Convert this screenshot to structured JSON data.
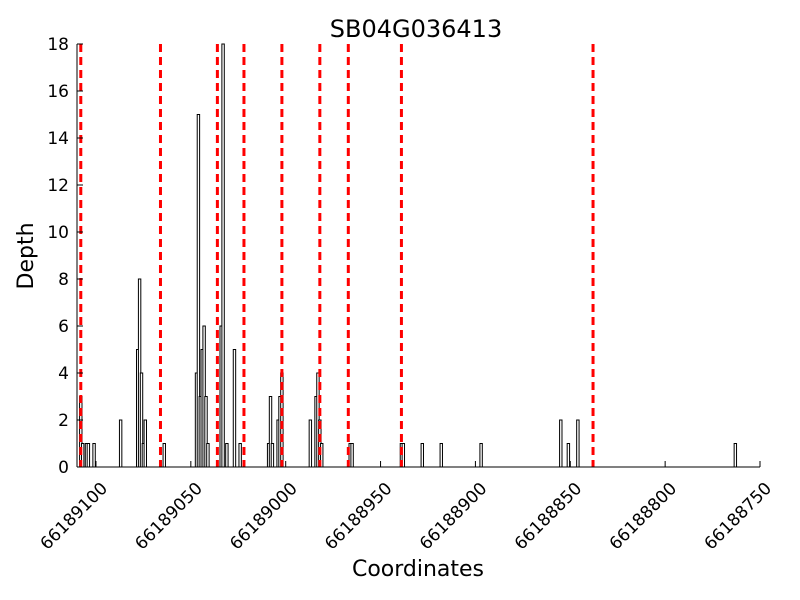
{
  "chart_data": {
    "type": "bar",
    "title": "SB04G036413",
    "xlabel": "Coordinates",
    "ylabel": "Depth",
    "xlim": [
      66189110,
      66188750
    ],
    "ylim": [
      0,
      18
    ],
    "x_reversed": true,
    "yticks": [
      0,
      2,
      4,
      6,
      8,
      10,
      12,
      14,
      16,
      18
    ],
    "xticks": [
      66189100,
      66189050,
      66189000,
      66188950,
      66188900,
      66188850,
      66188800,
      66188750
    ],
    "xtick_labels": [
      "66189100",
      "66189050",
      "66189000",
      "66188950",
      "66188900",
      "66188850",
      "66188800",
      "66188750"
    ],
    "grid": false,
    "bar_color": "#000000",
    "line_color": "#ff0000",
    "bars": [
      {
        "x": 66189108,
        "y": 3
      },
      {
        "x": 66189107,
        "y": 1
      },
      {
        "x": 66189105,
        "y": 1
      },
      {
        "x": 66189104,
        "y": 1
      },
      {
        "x": 66189101,
        "y": 1
      },
      {
        "x": 66189087,
        "y": 2
      },
      {
        "x": 66189078,
        "y": 5
      },
      {
        "x": 66189077,
        "y": 8
      },
      {
        "x": 66189076,
        "y": 4
      },
      {
        "x": 66189075,
        "y": 1
      },
      {
        "x": 66189074,
        "y": 2
      },
      {
        "x": 66189064,
        "y": 1
      },
      {
        "x": 66189047,
        "y": 4
      },
      {
        "x": 66189046,
        "y": 15
      },
      {
        "x": 66189045,
        "y": 3
      },
      {
        "x": 66189044,
        "y": 5
      },
      {
        "x": 66189043,
        "y": 6
      },
      {
        "x": 66189042,
        "y": 3
      },
      {
        "x": 66189041,
        "y": 1
      },
      {
        "x": 66189034,
        "y": 6
      },
      {
        "x": 66189033,
        "y": 18
      },
      {
        "x": 66189031,
        "y": 1
      },
      {
        "x": 66189027,
        "y": 5
      },
      {
        "x": 66189024,
        "y": 1
      },
      {
        "x": 66189009,
        "y": 1
      },
      {
        "x": 66189008,
        "y": 3
      },
      {
        "x": 66189007,
        "y": 1
      },
      {
        "x": 66189004,
        "y": 2
      },
      {
        "x": 66189003,
        "y": 3
      },
      {
        "x": 66189002,
        "y": 4
      },
      {
        "x": 66188987,
        "y": 2
      },
      {
        "x": 66188984,
        "y": 3
      },
      {
        "x": 66188983,
        "y": 4
      },
      {
        "x": 66188982,
        "y": 2
      },
      {
        "x": 66188981,
        "y": 1
      },
      {
        "x": 66188966,
        "y": 1
      },
      {
        "x": 66188965,
        "y": 1
      },
      {
        "x": 66188939,
        "y": 1
      },
      {
        "x": 66188938,
        "y": 1
      },
      {
        "x": 66188928,
        "y": 1
      },
      {
        "x": 66188918,
        "y": 1
      },
      {
        "x": 66188897,
        "y": 1
      },
      {
        "x": 66188855,
        "y": 2
      },
      {
        "x": 66188851,
        "y": 1
      },
      {
        "x": 66188846,
        "y": 2
      },
      {
        "x": 66188763,
        "y": 1
      }
    ],
    "vlines": [
      66189108,
      66189066,
      66189036,
      66189022,
      66189002,
      66188982,
      66188967,
      66188939,
      66188838
    ]
  }
}
